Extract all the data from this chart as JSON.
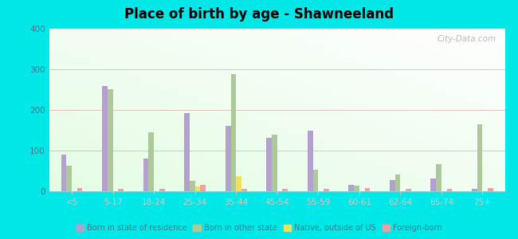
{
  "title": "Place of birth by age - Shawneeland",
  "categories": [
    "<5",
    "5-17",
    "18-24",
    "25-34",
    "35-44",
    "45-54",
    "55-59",
    "60-61",
    "62-64",
    "65-74",
    "75+"
  ],
  "series": {
    "Born in state of residence": [
      90,
      258,
      80,
      193,
      160,
      132,
      150,
      15,
      28,
      32,
      5
    ],
    "Born in other state": [
      62,
      250,
      145,
      25,
      288,
      140,
      53,
      13,
      42,
      67,
      165
    ],
    "Native, outside of US": [
      0,
      0,
      0,
      12,
      38,
      0,
      0,
      0,
      0,
      0,
      0
    ],
    "Foreign-born": [
      7,
      5,
      5,
      15,
      5,
      5,
      5,
      7,
      5,
      5,
      7
    ]
  },
  "colors": {
    "Born in state of residence": "#b3a0cc",
    "Born in other state": "#adc99a",
    "Native, outside of US": "#f0e060",
    "Foreign-born": "#f0a0a0"
  },
  "ylim": [
    0,
    400
  ],
  "yticks": [
    0,
    100,
    200,
    300,
    400
  ],
  "outer_background": "#00e8e8",
  "bar_width": 0.13,
  "watermark": "City-Data.com"
}
